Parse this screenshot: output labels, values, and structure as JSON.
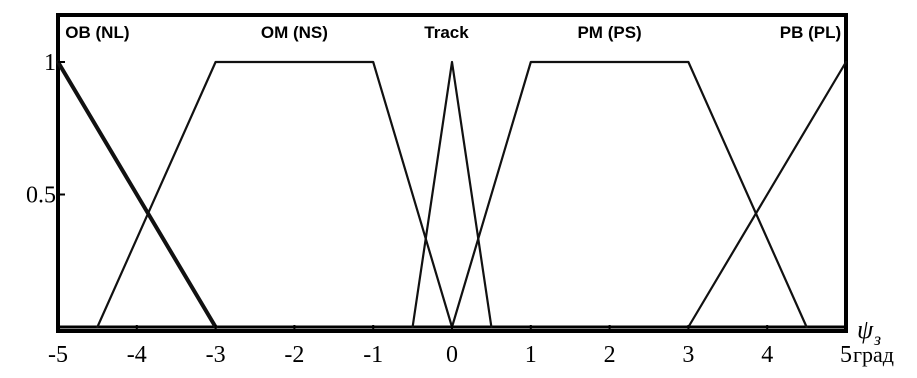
{
  "chart_data": {
    "type": "line",
    "title": "",
    "xlabel": "ψз",
    "xlabel_symbol": "ψ",
    "xlabel_subscript": "з",
    "xunit": "град",
    "ylabel": "",
    "xlim": [
      -5,
      5
    ],
    "ylim": [
      0,
      1
    ],
    "xticks": [
      -5,
      -4,
      -3,
      -2,
      -1,
      0,
      1,
      2,
      3,
      4,
      5
    ],
    "xtick_labels": [
      "-5",
      "-4",
      "-3",
      "-2",
      "-1",
      "0",
      "1",
      "2",
      "3",
      "4",
      "5"
    ],
    "yticks": [
      0.5,
      1
    ],
    "ytick_labels": [
      "0.5",
      "1"
    ],
    "grid": false,
    "series": [
      {
        "name": "OB (NL)",
        "thick": true,
        "points": [
          [
            -5,
            1
          ],
          [
            -3,
            0
          ]
        ],
        "label_x": -4.5
      },
      {
        "name": "OM (NS)",
        "thick": false,
        "points": [
          [
            -4.5,
            0
          ],
          [
            -3,
            1
          ],
          [
            -1,
            1
          ],
          [
            0,
            0
          ]
        ],
        "label_x": -2.0
      },
      {
        "name": "Track",
        "thick": false,
        "points": [
          [
            -0.5,
            0
          ],
          [
            0,
            1
          ],
          [
            0.5,
            0
          ]
        ],
        "label_x": -0.07
      },
      {
        "name": "PM (PS)",
        "thick": false,
        "points": [
          [
            0,
            0
          ],
          [
            1,
            1
          ],
          [
            3,
            1
          ],
          [
            4.5,
            0
          ]
        ],
        "label_x": 2.0
      },
      {
        "name": "PB (PL)",
        "thick": false,
        "points": [
          [
            3,
            0
          ],
          [
            5,
            1
          ]
        ],
        "label_x": 4.55
      }
    ]
  }
}
